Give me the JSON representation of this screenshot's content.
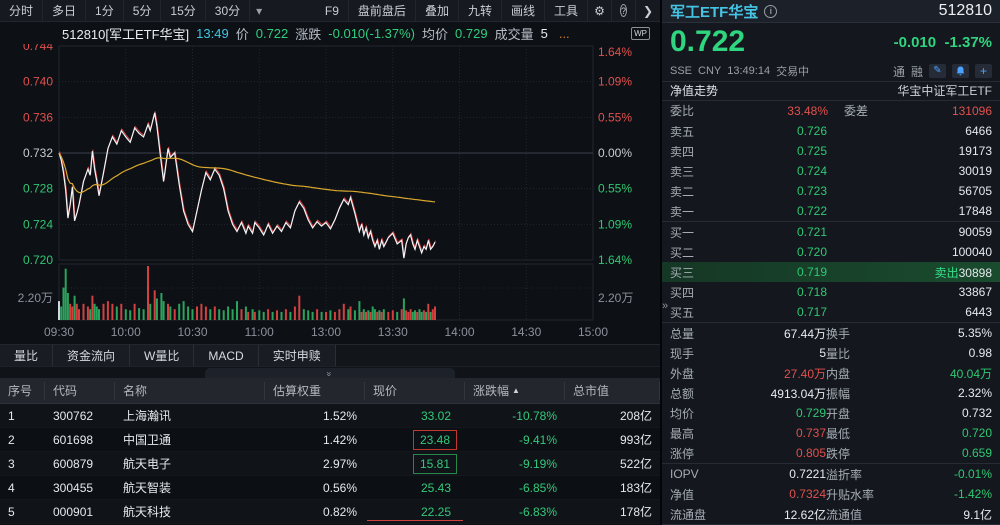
{
  "toolbar": {
    "periods": [
      "分时",
      "多日",
      "1分",
      "5分",
      "15分",
      "30分"
    ],
    "caret_icon": "▾",
    "right_items": [
      "F9",
      "盘前盘后",
      "叠加",
      "九转",
      "画线",
      "工具"
    ],
    "gear_icon": "⚙",
    "help_icon": "?",
    "chevron_icon": "❯"
  },
  "chart_header": {
    "code": "512810[军工ETF华宝]",
    "time": "13:49",
    "price_label": "价",
    "price": "0.722",
    "chg_label": "涨跌",
    "chg": "-0.010(-1.37%)",
    "avg_label": "均价",
    "avg": "0.729",
    "vol_label": "成交量",
    "vol": "5",
    "more": "...",
    "wp": "WP"
  },
  "chart_data": {
    "type": "line",
    "title": "军工ETF华宝 512810 intraday",
    "prev_close": 0.732,
    "ylim": [
      0.72,
      0.744
    ],
    "pct_ticks": [
      "1.64%",
      "1.09%",
      "0.55%",
      "0.00%",
      "0.55%",
      "1.09%",
      "1.64%"
    ],
    "price_ticks": [
      "0.744",
      "0.740",
      "0.736",
      "0.732",
      "0.728",
      "0.724",
      "0.720"
    ],
    "vol_scale_label": "2.20万",
    "x_labels": [
      "09:30",
      "10:00",
      "10:30",
      "11:00",
      "13:00",
      "13:30",
      "14:00",
      "14:30",
      "15:00"
    ],
    "total_minutes": 240,
    "last_minute": 169,
    "minutes": [
      0,
      1,
      2,
      3,
      4,
      5,
      6,
      7,
      8,
      9,
      11,
      13,
      14,
      15,
      16,
      17,
      18,
      20,
      22,
      24,
      26,
      28,
      30,
      32,
      34,
      36,
      38,
      40,
      41,
      43,
      44,
      46,
      47,
      49,
      50,
      52,
      54,
      56,
      58,
      60,
      62,
      64,
      66,
      68,
      70,
      72,
      74,
      76,
      78,
      80,
      82,
      84,
      85,
      87,
      88,
      90,
      92,
      94,
      96,
      98,
      100,
      102,
      104,
      106,
      108,
      110,
      112,
      114,
      116,
      118,
      120,
      122,
      124,
      126,
      128,
      130,
      131,
      133,
      135,
      136,
      137,
      138,
      139,
      140,
      141,
      142,
      143,
      144,
      145,
      146,
      148,
      150,
      152,
      154,
      155,
      156,
      157,
      158,
      159,
      160,
      161,
      162,
      163,
      164,
      165,
      166,
      167,
      168,
      169
    ],
    "prices": [
      0.732,
      0.7312,
      0.7298,
      0.7278,
      0.7247,
      0.7262,
      0.7282,
      0.7244,
      0.7252,
      0.7262,
      0.7288,
      0.7302,
      0.7295,
      0.7322,
      0.7302,
      0.7288,
      0.7272,
      0.7298,
      0.7325,
      0.7338,
      0.733,
      0.7345,
      0.7338,
      0.7332,
      0.7348,
      0.7342,
      0.7338,
      0.7352,
      0.7345,
      0.7365,
      0.735,
      0.7308,
      0.7288,
      0.7325,
      0.7315,
      0.732,
      0.7285,
      0.7255,
      0.724,
      0.7232,
      0.7255,
      0.7278,
      0.7298,
      0.729,
      0.7302,
      0.7295,
      0.728,
      0.7255,
      0.724,
      0.7232,
      0.7242,
      0.723,
      0.7238,
      0.723,
      0.7242,
      0.7236,
      0.7228,
      0.724,
      0.723,
      0.7238,
      0.7232,
      0.7242,
      0.7236,
      0.7255,
      0.7265,
      0.7258,
      0.7245,
      0.7236,
      0.7243,
      0.7238,
      0.7242,
      0.7235,
      0.7245,
      0.7258,
      0.7268,
      0.7262,
      0.727,
      0.7252,
      0.7232,
      0.724,
      0.7228,
      0.7236,
      0.7225,
      0.7232,
      0.7222,
      0.7215,
      0.7222,
      0.7212,
      0.7222,
      0.7215,
      0.7225,
      0.723,
      0.7218,
      0.7222,
      0.7202,
      0.7218,
      0.7225,
      0.7228,
      0.7218,
      0.7212,
      0.7222,
      0.7215,
      0.7208,
      0.7215,
      0.7212,
      0.7222,
      0.7212,
      0.7215,
      0.722
    ],
    "volumes": [
      0.35,
      0.25,
      0.6,
      0.95,
      0.5,
      0.3,
      0.25,
      0.45,
      0.3,
      0.2,
      0.3,
      0.25,
      0.2,
      0.45,
      0.3,
      0.25,
      0.2,
      0.3,
      0.35,
      0.3,
      0.25,
      0.3,
      0.2,
      0.18,
      0.3,
      0.22,
      0.2,
      1.0,
      0.3,
      0.55,
      0.4,
      0.5,
      0.35,
      0.3,
      0.25,
      0.2,
      0.3,
      0.35,
      0.25,
      0.2,
      0.25,
      0.3,
      0.25,
      0.2,
      0.25,
      0.2,
      0.18,
      0.25,
      0.2,
      0.35,
      0.2,
      0.25,
      0.15,
      0.2,
      0.15,
      0.18,
      0.15,
      0.2,
      0.15,
      0.18,
      0.15,
      0.2,
      0.15,
      0.25,
      0.45,
      0.2,
      0.18,
      0.15,
      0.2,
      0.15,
      0.15,
      0.18,
      0.15,
      0.2,
      0.3,
      0.2,
      0.25,
      0.18,
      0.35,
      0.15,
      0.2,
      0.15,
      0.18,
      0.15,
      0.25,
      0.2,
      0.15,
      0.18,
      0.15,
      0.2,
      0.15,
      0.18,
      0.15,
      0.2,
      0.4,
      0.18,
      0.15,
      0.2,
      0.15,
      0.18,
      0.15,
      0.2,
      0.15,
      0.18,
      0.15,
      0.3,
      0.15,
      0.2,
      0.25
    ],
    "colors": {
      "up": "#d24040",
      "down": "#2aa35c",
      "flat": "#d4d8de",
      "price_line": "#f2f4f7",
      "lead_line": "#d64040",
      "avg_line": "#d9a72e",
      "grid": "#23262e",
      "axis_red": "#e0504e",
      "axis_green": "#2fc873",
      "axis_white": "#c8cdd4",
      "axis_gray": "#8b919b"
    }
  },
  "tabs": [
    "量比",
    "资金流向",
    "W量比",
    "MACD",
    "实时申赎"
  ],
  "collapse_icon": "»",
  "table": {
    "headers": [
      "序号",
      "代码",
      "名称",
      "估算权重",
      "现价",
      "涨跌幅",
      "总市值"
    ],
    "sort_icon": "▲",
    "rows": [
      {
        "idx": "1",
        "code": "300762",
        "name": "上海瀚讯",
        "weight": "1.52%",
        "price": "33.02",
        "chg": "-10.78%",
        "cap": "208亿",
        "box": ""
      },
      {
        "idx": "2",
        "code": "601698",
        "name": "中国卫通",
        "weight": "1.42%",
        "price": "23.48",
        "chg": "-9.41%",
        "cap": "993亿",
        "box": "red"
      },
      {
        "idx": "3",
        "code": "600879",
        "name": "航天电子",
        "weight": "2.97%",
        "price": "15.81",
        "chg": "-9.19%",
        "cap": "522亿",
        "box": "grn"
      },
      {
        "idx": "4",
        "code": "300455",
        "name": "航天智装",
        "weight": "0.56%",
        "price": "25.43",
        "chg": "-6.85%",
        "cap": "183亿",
        "box": ""
      },
      {
        "idx": "5",
        "code": "000901",
        "name": "航天科技",
        "weight": "0.82%",
        "price": "22.25",
        "chg": "-6.83%",
        "cap": "178亿",
        "box": "flash"
      }
    ]
  },
  "panel": {
    "name": "军工ETF华宝",
    "info_icon": "i",
    "code": "512810",
    "price": "0.722",
    "chg": "-0.010",
    "chg_pct": "-1.37%",
    "exchange": "SSE",
    "currency": "CNY",
    "time": "13:49:14",
    "status": "交易中",
    "badges": [
      "通",
      "融"
    ],
    "nav_left": "净值走势",
    "nav_right": "华宝中证军工ETF",
    "wb": {
      "l1": "委比",
      "v1": "33.48%",
      "l2": "委差",
      "v2": "131096"
    },
    "asks": [
      {
        "lab": "卖五",
        "prc": "0.726",
        "vol": "6466"
      },
      {
        "lab": "卖四",
        "prc": "0.725",
        "vol": "19173"
      },
      {
        "lab": "卖三",
        "prc": "0.724",
        "vol": "30019"
      },
      {
        "lab": "卖二",
        "prc": "0.723",
        "vol": "56705"
      },
      {
        "lab": "卖一",
        "prc": "0.722",
        "vol": "17848"
      }
    ],
    "bids": [
      {
        "lab": "买一",
        "prc": "0.721",
        "vol": "90059"
      },
      {
        "lab": "买二",
        "prc": "0.720",
        "vol": "100040"
      },
      {
        "lab": "买三",
        "prc": "0.719",
        "vol": "30898",
        "tag": "卖出",
        "hl": true
      },
      {
        "lab": "买四",
        "prc": "0.718",
        "vol": "33867"
      },
      {
        "lab": "买五",
        "prc": "0.717",
        "vol": "6443"
      }
    ],
    "stats": [
      [
        {
          "l": "总量",
          "v": "67.44万",
          "c": "vw"
        },
        {
          "l": "换手",
          "v": "5.35%",
          "c": "vw"
        }
      ],
      [
        {
          "l": "现手",
          "v": "5",
          "c": "vw"
        },
        {
          "l": "量比",
          "v": "0.98",
          "c": "vw"
        }
      ],
      [
        {
          "l": "外盘",
          "v": "27.40万",
          "c": "vr"
        },
        {
          "l": "内盘",
          "v": "40.04万",
          "c": "vg"
        }
      ],
      [
        {
          "l": "总额",
          "v": "4913.04万",
          "c": "vw"
        },
        {
          "l": "振幅",
          "v": "2.32%",
          "c": "vw"
        }
      ],
      [
        {
          "l": "均价",
          "v": "0.729",
          "c": "vg"
        },
        {
          "l": "开盘",
          "v": "0.732",
          "c": "vw"
        }
      ],
      [
        {
          "l": "最高",
          "v": "0.737",
          "c": "vr"
        },
        {
          "l": "最低",
          "v": "0.720",
          "c": "vg"
        }
      ],
      [
        {
          "l": "涨停",
          "v": "0.805",
          "c": "vr"
        },
        {
          "l": "跌停",
          "v": "0.659",
          "c": "vg"
        }
      ],
      [
        {
          "l": "IOPV",
          "v": "0.7221",
          "c": "vw"
        },
        {
          "l": "溢折率",
          "v": "-0.01%",
          "c": "vg"
        }
      ],
      [
        {
          "l": "净值",
          "v": "0.7324",
          "c": "vr"
        },
        {
          "l": "升贴水率",
          "v": "-1.42%",
          "c": "vg"
        }
      ],
      [
        {
          "l": "流通盘",
          "v": "12.62亿",
          "c": "vw"
        },
        {
          "l": "流通值",
          "v": "9.1亿",
          "c": "vw"
        }
      ]
    ],
    "hr_after_stats": [
      6,
      9
    ],
    "expand_icon": "»"
  }
}
